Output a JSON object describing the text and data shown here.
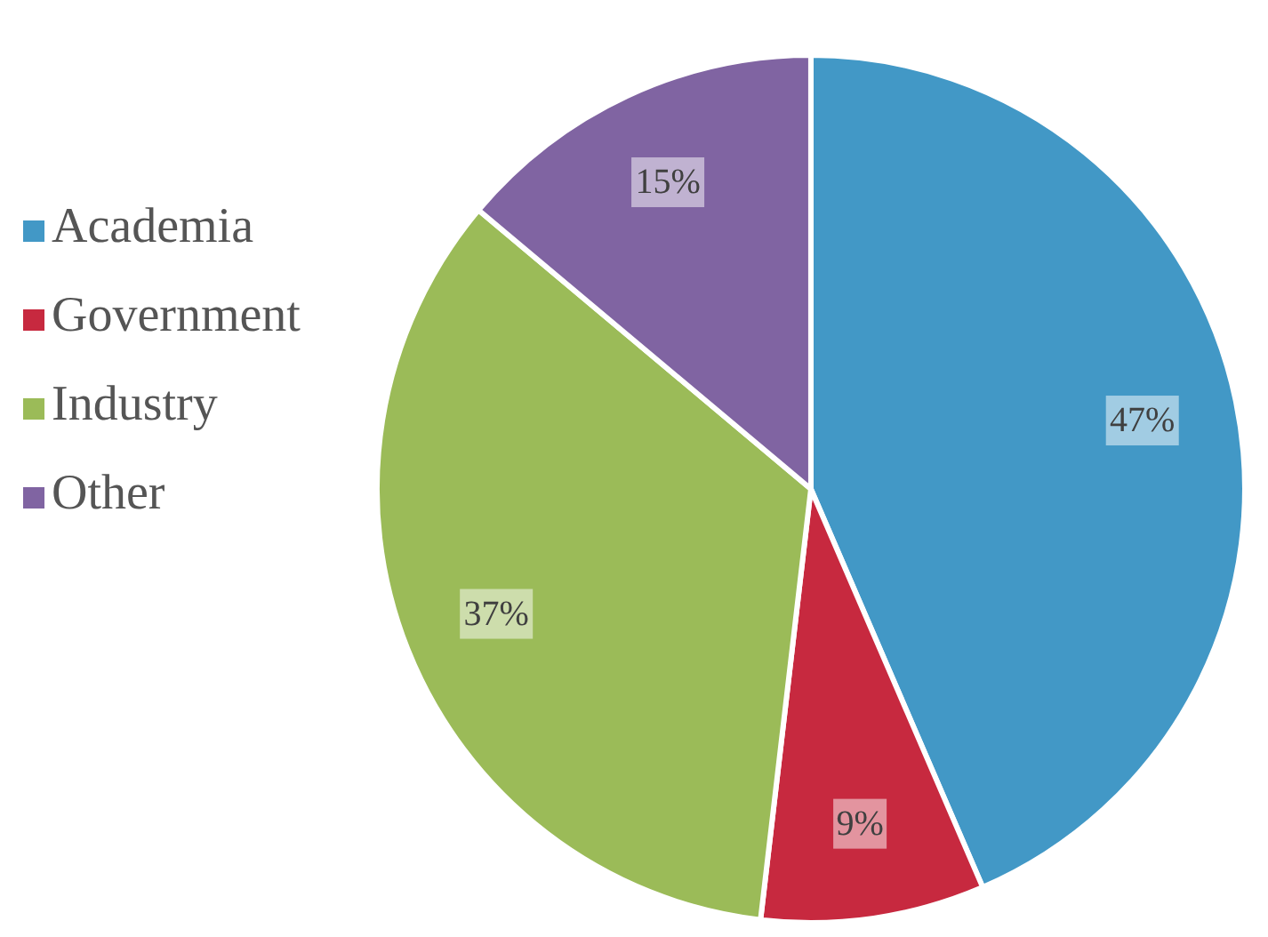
{
  "chart_data": {
    "type": "pie",
    "categories": [
      "Academia",
      "Government",
      "Industry",
      "Other"
    ],
    "values": [
      47,
      9,
      37,
      15
    ],
    "colors": [
      "#4298c6",
      "#c7293f",
      "#9bbb58",
      "#8064a2"
    ],
    "value_labels": [
      "47%",
      "9%",
      "37%",
      "15%"
    ],
    "legend": "left"
  }
}
